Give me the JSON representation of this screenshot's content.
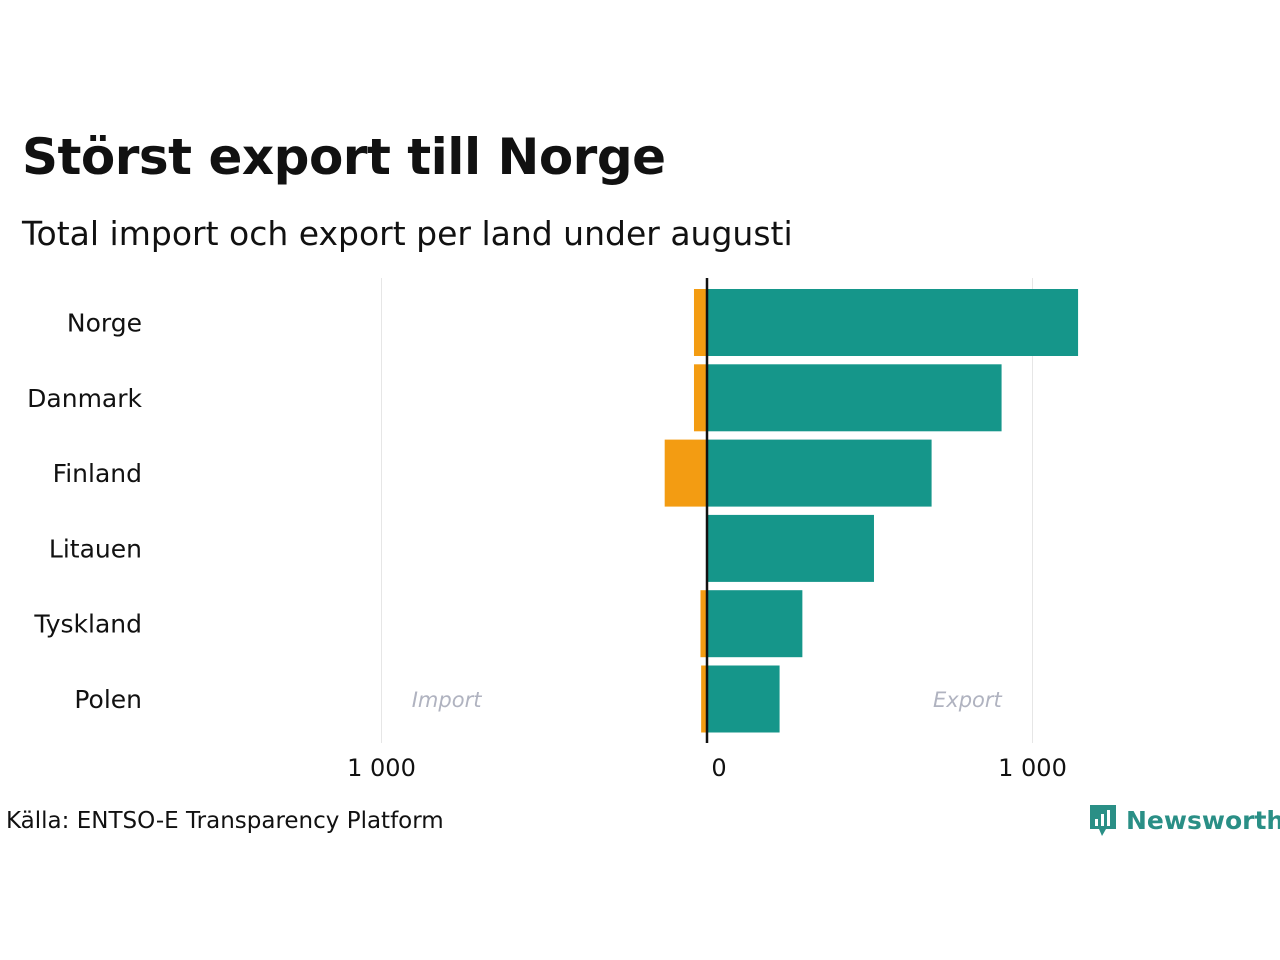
{
  "header": {
    "title": "Störst export till Norge",
    "subtitle": "Total import och export per land under augusti"
  },
  "footer": {
    "source": "Källa: ENTSO-E Transparency Platform",
    "brand": "Newsworthy"
  },
  "colors": {
    "export": "#15968a",
    "import": "#f39c12",
    "axis": "#111111",
    "grid": "#e6e6e6",
    "annotation": "#b0b3c0",
    "brand": "#2a8f86"
  },
  "chart_data": {
    "type": "bar",
    "orientation": "horizontal",
    "categories": [
      "Norge",
      "Danmark",
      "Finland",
      "Litauen",
      "Tyskland",
      "Polen"
    ],
    "series": [
      {
        "key": "import",
        "values": [
          -40,
          -40,
          -130,
          0,
          -20,
          -18
        ]
      },
      {
        "key": "export",
        "values": [
          1140,
          905,
          690,
          513,
          293,
          223
        ]
      }
    ],
    "xlim": [
      -1000,
      1000
    ],
    "xticks": [
      {
        "value": -1000,
        "label": "1 000"
      },
      {
        "value": 0,
        "label": "0"
      },
      {
        "value": 1000,
        "label": "1 000"
      }
    ],
    "annotations": [
      {
        "text": "Import",
        "x": -800
      },
      {
        "text": "Export",
        "x": 800
      }
    ],
    "grid": true,
    "legend": "none"
  }
}
